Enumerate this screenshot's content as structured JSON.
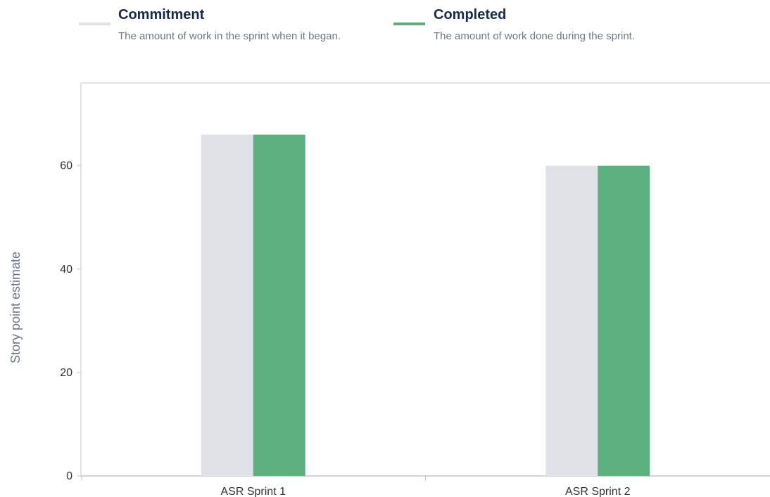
{
  "legend": {
    "items": [
      {
        "key": "commitment",
        "title": "Commitment",
        "description": "The amount of work in the sprint when it began.",
        "color": "#dfe1e6"
      },
      {
        "key": "completed",
        "title": "Completed",
        "description": "The amount of work done during the sprint.",
        "color": "#5db080"
      }
    ]
  },
  "chart_data": {
    "type": "bar",
    "categories": [
      "ASR Sprint 1",
      "ASR Sprint 2"
    ],
    "series": [
      {
        "name": "Commitment",
        "values": [
          66,
          60
        ],
        "color": "#dfe1e6"
      },
      {
        "name": "Completed",
        "values": [
          66,
          60
        ],
        "color": "#5db080"
      }
    ],
    "ylabel": "Story point estimate",
    "xlabel": "",
    "ylim": [
      0,
      76
    ],
    "yticks": [
      0,
      20,
      40,
      60
    ],
    "grid": false,
    "legend_position": "top-left"
  }
}
